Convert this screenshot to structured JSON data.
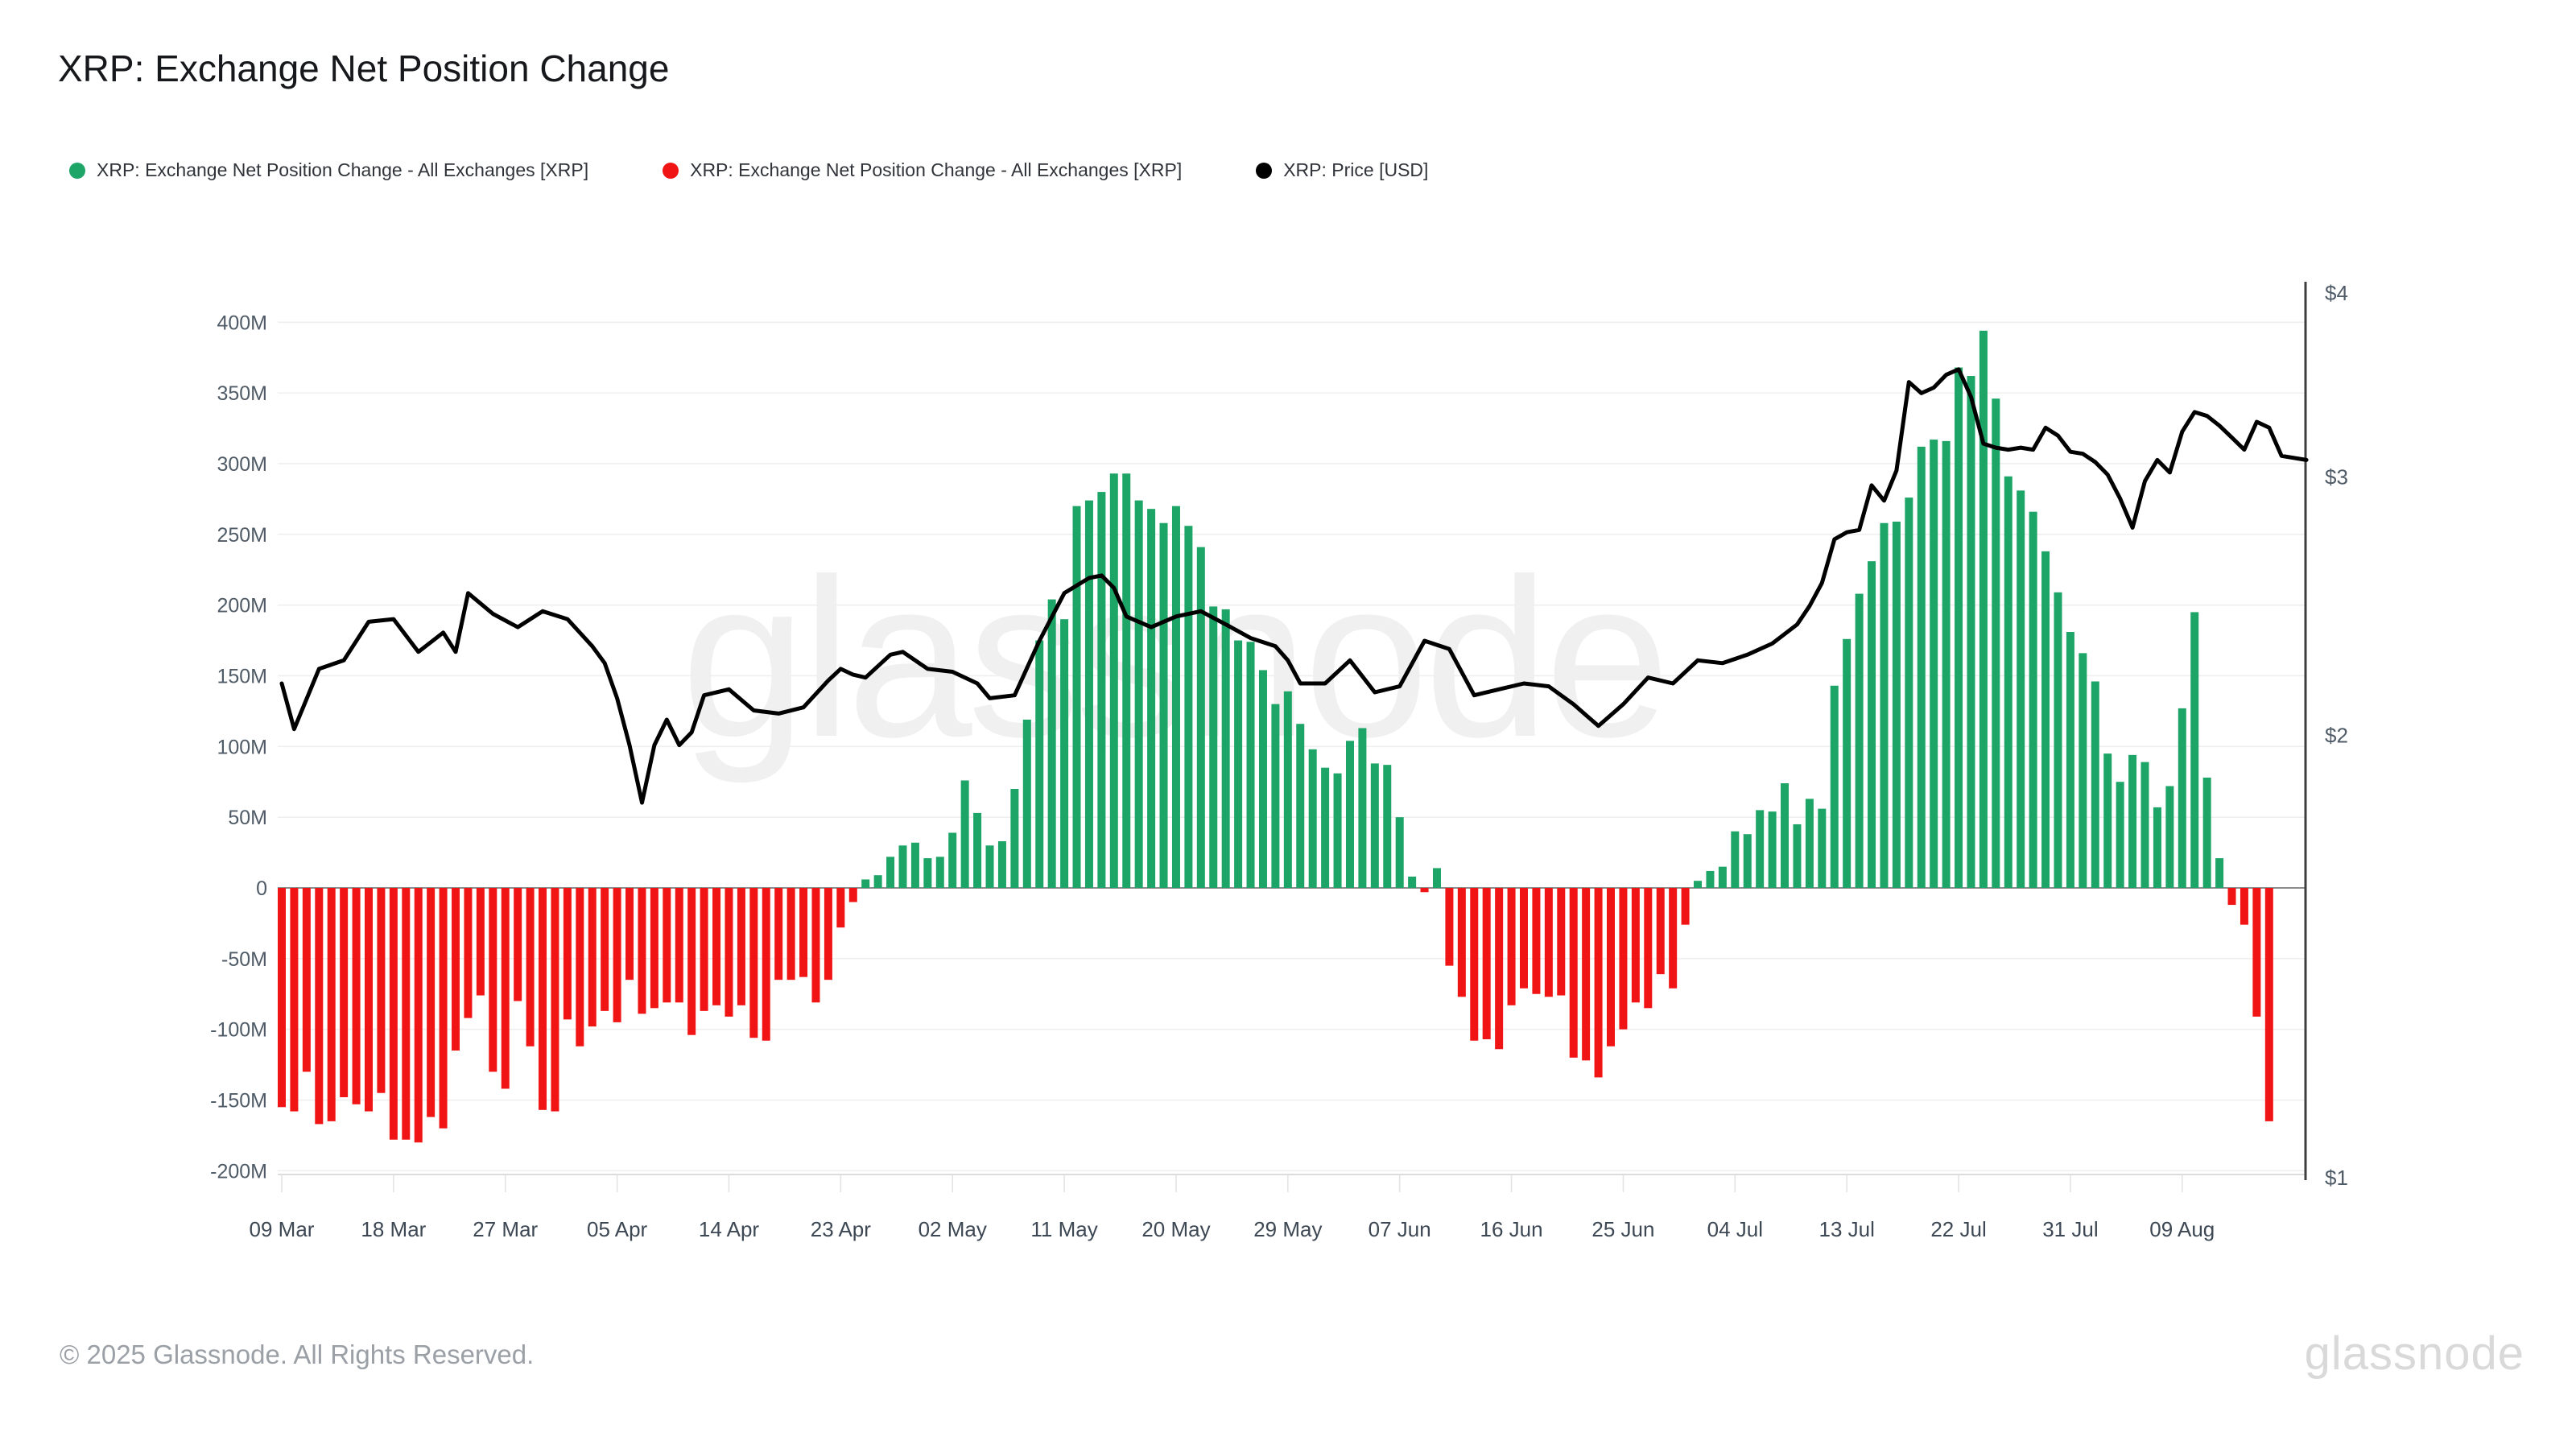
{
  "title": "XRP: Exchange Net Position Change",
  "legend": {
    "items": [
      {
        "label": "XRP: Exchange Net Position Change - All Exchanges [XRP]",
        "color": "#1ca566"
      },
      {
        "label": "XRP: Exchange Net Position Change - All Exchanges [XRP]",
        "color": "#f01414"
      },
      {
        "label": "XRP: Price [USD]",
        "color": "#000000"
      }
    ]
  },
  "watermark": "glassnode",
  "footer": {
    "copyright": "© 2025 Glassnode. All Rights Reserved.",
    "brand": "glassnode"
  },
  "chart_data": {
    "type": "bar+line",
    "title": "XRP: Exchange Net Position Change",
    "bar_series_name": "Exchange Net Position Change - All Exchanges [XRP]",
    "line_series_name": "XRP: Price [USD]",
    "x_interval": "daily",
    "x_start_label": "09 Mar",
    "x_tick_labels": [
      "09 Mar",
      "18 Mar",
      "27 Mar",
      "05 Apr",
      "14 Apr",
      "23 Apr",
      "02 May",
      "11 May",
      "20 May",
      "29 May",
      "07 Jun",
      "16 Jun",
      "25 Jun",
      "04 Jul",
      "13 Jul",
      "22 Jul",
      "31 Jul",
      "09 Aug"
    ],
    "x_tick_day_indices": [
      0,
      9,
      18,
      27,
      36,
      45,
      54,
      63,
      72,
      81,
      90,
      99,
      108,
      117,
      126,
      135,
      144,
      153
    ],
    "left_axis": {
      "tick_labels": [
        "400M",
        "350M",
        "300M",
        "250M",
        "200M",
        "150M",
        "100M",
        "50M",
        "0",
        "-50M",
        "-100M",
        "-150M",
        "-200M"
      ],
      "tick_values_millions": [
        400,
        350,
        300,
        250,
        200,
        150,
        100,
        50,
        0,
        -50,
        -100,
        -150,
        -200
      ],
      "range_millions": [
        -200,
        400
      ],
      "grid": true
    },
    "right_axis": {
      "tick_labels": [
        "$4",
        "$3",
        "$2",
        "$1"
      ],
      "tick_values_usd": [
        4,
        3,
        2,
        1
      ],
      "scale": "log",
      "range_usd": [
        1,
        4
      ]
    },
    "bars_millions": [
      -155,
      -158,
      -130,
      -167,
      -165,
      -148,
      -153,
      -158,
      -145,
      -178,
      -178,
      -180,
      -162,
      -170,
      -115,
      -92,
      -76,
      -130,
      -142,
      -80,
      -112,
      -157,
      -158,
      -93,
      -112,
      -98,
      -87,
      -95,
      -65,
      -89,
      -85,
      -81,
      -81,
      -104,
      -87,
      -83,
      -91,
      -83,
      -106,
      -108,
      -65,
      -65,
      -63,
      -81,
      -65,
      -28,
      -10,
      6,
      9,
      22,
      30,
      32,
      21,
      22,
      39,
      76,
      53,
      30,
      33,
      70,
      119,
      175,
      204,
      190,
      270,
      274,
      280,
      293,
      293,
      274,
      268,
      258,
      270,
      256,
      241,
      199,
      197,
      175,
      174,
      154,
      130,
      139,
      116,
      98,
      85,
      81,
      104,
      113,
      88,
      87,
      50,
      8,
      -3,
      14,
      -55,
      -77,
      -108,
      -107,
      -114,
      -83,
      -71,
      -75,
      -77,
      -76,
      -120,
      -122,
      -134,
      -112,
      -100,
      -81,
      -85,
      -61,
      -71,
      -26,
      5,
      12,
      15,
      40,
      38,
      55,
      54,
      74,
      45,
      63,
      56,
      143,
      176,
      208,
      231,
      258,
      259,
      276,
      312,
      317,
      316,
      368,
      362,
      394,
      346,
      291,
      281,
      266,
      238,
      209,
      181,
      166,
      146,
      95,
      75,
      94,
      89,
      57,
      72,
      127,
      195,
      78,
      21,
      -12,
      -26,
      -91,
      -165
    ],
    "price_usd_points": [
      [
        0,
        2.17
      ],
      [
        1,
        2.02
      ],
      [
        3,
        2.22
      ],
      [
        5,
        2.25
      ],
      [
        7,
        2.39
      ],
      [
        9,
        2.4
      ],
      [
        11,
        2.28
      ],
      [
        13,
        2.35
      ],
      [
        14,
        2.28
      ],
      [
        15,
        2.5
      ],
      [
        17,
        2.42
      ],
      [
        19,
        2.37
      ],
      [
        21,
        2.43
      ],
      [
        23,
        2.4
      ],
      [
        25,
        2.3
      ],
      [
        26,
        2.24
      ],
      [
        27,
        2.12
      ],
      [
        28,
        1.97
      ],
      [
        29,
        1.8
      ],
      [
        30,
        1.97
      ],
      [
        31,
        2.05
      ],
      [
        32,
        1.97
      ],
      [
        33,
        2.01
      ],
      [
        34,
        2.13
      ],
      [
        36,
        2.15
      ],
      [
        38,
        2.08
      ],
      [
        40,
        2.07
      ],
      [
        42,
        2.09
      ],
      [
        44,
        2.18
      ],
      [
        45,
        2.22
      ],
      [
        46,
        2.2
      ],
      [
        47,
        2.19
      ],
      [
        49,
        2.27
      ],
      [
        50,
        2.28
      ],
      [
        52,
        2.22
      ],
      [
        54,
        2.21
      ],
      [
        56,
        2.17
      ],
      [
        57,
        2.12
      ],
      [
        59,
        2.13
      ],
      [
        61,
        2.32
      ],
      [
        63,
        2.5
      ],
      [
        65,
        2.56
      ],
      [
        66,
        2.57
      ],
      [
        67,
        2.52
      ],
      [
        68,
        2.41
      ],
      [
        70,
        2.37
      ],
      [
        72,
        2.41
      ],
      [
        74,
        2.43
      ],
      [
        76,
        2.38
      ],
      [
        78,
        2.33
      ],
      [
        80,
        2.3
      ],
      [
        81,
        2.25
      ],
      [
        82,
        2.17
      ],
      [
        84,
        2.17
      ],
      [
        86,
        2.25
      ],
      [
        88,
        2.14
      ],
      [
        90,
        2.16
      ],
      [
        92,
        2.32
      ],
      [
        94,
        2.29
      ],
      [
        96,
        2.13
      ],
      [
        98,
        2.15
      ],
      [
        100,
        2.17
      ],
      [
        102,
        2.16
      ],
      [
        104,
        2.1
      ],
      [
        106,
        2.03
      ],
      [
        108,
        2.1
      ],
      [
        110,
        2.19
      ],
      [
        112,
        2.17
      ],
      [
        114,
        2.25
      ],
      [
        116,
        2.24
      ],
      [
        118,
        2.27
      ],
      [
        120,
        2.31
      ],
      [
        122,
        2.38
      ],
      [
        123,
        2.45
      ],
      [
        124,
        2.54
      ],
      [
        125,
        2.72
      ],
      [
        126,
        2.75
      ],
      [
        127,
        2.76
      ],
      [
        128,
        2.96
      ],
      [
        129,
        2.89
      ],
      [
        130,
        3.03
      ],
      [
        131,
        3.48
      ],
      [
        132,
        3.42
      ],
      [
        133,
        3.45
      ],
      [
        134,
        3.52
      ],
      [
        135,
        3.55
      ],
      [
        136,
        3.4
      ],
      [
        137,
        3.16
      ],
      [
        138,
        3.14
      ],
      [
        139,
        3.13
      ],
      [
        140,
        3.14
      ],
      [
        141,
        3.13
      ],
      [
        142,
        3.24
      ],
      [
        143,
        3.2
      ],
      [
        144,
        3.12
      ],
      [
        145,
        3.11
      ],
      [
        146,
        3.07
      ],
      [
        147,
        3.01
      ],
      [
        148,
        2.9
      ],
      [
        149,
        2.77
      ],
      [
        150,
        2.98
      ],
      [
        151,
        3.08
      ],
      [
        152,
        3.02
      ],
      [
        153,
        3.22
      ],
      [
        154,
        3.32
      ],
      [
        155,
        3.3
      ],
      [
        156,
        3.25
      ],
      [
        157,
        3.19
      ],
      [
        158,
        3.13
      ],
      [
        159,
        3.27
      ],
      [
        160,
        3.24
      ],
      [
        161,
        3.1
      ],
      [
        163,
        3.08
      ]
    ],
    "colors": {
      "positive_bar": "#1ca566",
      "negative_bar": "#f01414",
      "price_line": "#000000",
      "grid_line": "#efefef",
      "zero_line": "#8c8c8c",
      "bottom_axis_line": "#dcdcdc",
      "right_axis_line": "#3f3f3f",
      "tick_mark": "#e3e3e3",
      "axis_text": "#4f5b67",
      "x_axis_text": "#3d4854"
    }
  }
}
